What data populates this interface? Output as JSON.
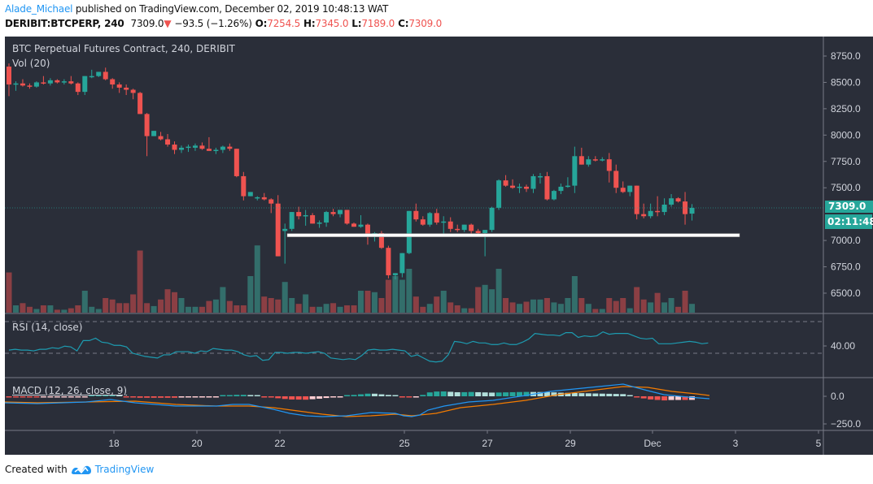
{
  "header": {
    "author": "Alade_Michael",
    "published_text": " published on TradingView.com, December 02, 2019 10:48:13 WAT",
    "symbol": "DERIBIT:BTCPERP, 240",
    "last": "7309.0",
    "change_arrow": "▼",
    "change": "−93.5 (−1.26%)",
    "o_label": "O:",
    "o": "7254.5",
    "h_label": "H:",
    "h": "7345.0",
    "l_label": "L:",
    "l": "7189.0",
    "c_label": "C:",
    "c": "7309.0"
  },
  "panes": {
    "main_title": "BTC Perpetual Futures Contract, 240, DERIBIT",
    "vol_title": "Vol (20)",
    "rsi_title": "RSI (14, close)",
    "macd_title": "MACD (12, 26, close, 9)",
    "price_label": "7309.0",
    "countdown": "02:11:48"
  },
  "footer": {
    "created_with": "Created with",
    "brand": "TradingView"
  },
  "colors": {
    "bg": "#2a2e39",
    "up": "#26a69a",
    "down": "#ef5350",
    "vol_up": "#336e6b",
    "vol_down": "#8b3f44",
    "rsi": "#1d9bb0",
    "macd": "#2196f3",
    "signal": "#f57c00",
    "hist_up_strong": "#26a69a",
    "hist_up_weak": "#b2dfdb",
    "hist_dn_strong": "#ef5350",
    "hist_dn_weak": "#ffcdd2",
    "support": "#ffffff"
  },
  "chart_data": [
    {
      "type": "candlestick",
      "title": "BTC Perpetual Futures Contract, 240, DERIBIT",
      "interval": "240",
      "y_ticks": [
        6500,
        6750,
        7000,
        7250,
        7500,
        7750,
        8000,
        8250,
        8500,
        8750
      ],
      "y_tick_labels": [
        "6500.0",
        "6750.0",
        "7000.0",
        "7500.0",
        "7750.0",
        "8000.0",
        "8250.0",
        "8500.0",
        "8750.0"
      ],
      "x_tick_labels": [
        "18",
        "20",
        "22",
        "25",
        "27",
        "29",
        "Dec",
        "3",
        "5"
      ],
      "last_price": 7309.0,
      "support_line": 7050,
      "ohlc": [
        [
          8650,
          8680,
          8370,
          8480
        ],
        [
          8480,
          8510,
          8420,
          8490
        ],
        [
          8490,
          8530,
          8460,
          8470
        ],
        [
          8470,
          8490,
          8440,
          8460
        ],
        [
          8460,
          8510,
          8450,
          8500
        ],
        [
          8500,
          8560,
          8480,
          8490
        ],
        [
          8490,
          8540,
          8470,
          8520
        ],
        [
          8520,
          8530,
          8490,
          8500
        ],
        [
          8500,
          8530,
          8480,
          8510
        ],
        [
          8510,
          8560,
          8480,
          8490
        ],
        [
          8490,
          8500,
          8380,
          8410
        ],
        [
          8410,
          8530,
          8380,
          8560
        ],
        [
          8560,
          8620,
          8540,
          8560
        ],
        [
          8560,
          8590,
          8550,
          8600
        ],
        [
          8600,
          8640,
          8520,
          8530
        ],
        [
          8530,
          8540,
          8440,
          8480
        ],
        [
          8480,
          8500,
          8400,
          8450
        ],
        [
          8450,
          8480,
          8380,
          8430
        ],
        [
          8430,
          8440,
          8340,
          8400
        ],
        [
          8400,
          8410,
          8200,
          8200
        ],
        [
          8200,
          8210,
          7800,
          7990
        ],
        [
          7990,
          8040,
          7990,
          8040
        ],
        [
          7990,
          8030,
          7950,
          7960
        ],
        [
          7960,
          8010,
          7890,
          7910
        ],
        [
          7910,
          7940,
          7820,
          7860
        ],
        [
          7860,
          7900,
          7830,
          7880
        ],
        [
          7880,
          7910,
          7840,
          7890
        ],
        [
          7880,
          7920,
          7850,
          7900
        ],
        [
          7900,
          7930,
          7860,
          7870
        ],
        [
          7870,
          7980,
          7850,
          7850
        ],
        [
          7850,
          7880,
          7820,
          7860
        ],
        [
          7860,
          7900,
          7830,
          7890
        ],
        [
          7890,
          7920,
          7850,
          7870
        ],
        [
          7870,
          7870,
          7600,
          7610
        ],
        [
          7610,
          7650,
          7380,
          7420
        ],
        [
          7420,
          7460,
          7440,
          7460
        ],
        [
          7400,
          7420,
          7380,
          7410
        ],
        [
          7410,
          7450,
          7380,
          7390
        ],
        [
          7390,
          7400,
          7260,
          7350
        ],
        [
          7350,
          7430,
          6950,
          6850
        ],
        [
          7090,
          7160,
          6780,
          7110
        ],
        [
          7110,
          7260,
          7090,
          7270
        ],
        [
          7270,
          7320,
          7200,
          7230
        ],
        [
          7230,
          7290,
          7140,
          7240
        ],
        [
          7240,
          7260,
          7160,
          7160
        ],
        [
          7160,
          7190,
          7120,
          7170
        ],
        [
          7170,
          7280,
          7130,
          7270
        ],
        [
          7270,
          7300,
          7230,
          7250
        ],
        [
          7250,
          7290,
          7220,
          7290
        ],
        [
          7290,
          7290,
          7150,
          7160
        ],
        [
          7160,
          7170,
          7140,
          7130
        ],
        [
          7130,
          7240,
          7120,
          7150
        ],
        [
          7150,
          7160,
          6960,
          7040
        ],
        [
          7040,
          7080,
          6990,
          7070
        ],
        [
          7070,
          7090,
          6920,
          6930
        ],
        [
          6930,
          6950,
          6640,
          6670
        ],
        [
          6670,
          6680,
          6630,
          6690
        ],
        [
          6690,
          6850,
          6650,
          6880
        ],
        [
          6880,
          7280,
          6870,
          7280
        ],
        [
          7280,
          7350,
          7180,
          7200
        ],
        [
          7200,
          7230,
          7140,
          7150
        ],
        [
          7150,
          7270,
          7130,
          7260
        ],
        [
          7260,
          7300,
          7150,
          7170
        ],
        [
          7170,
          7230,
          7050,
          7180
        ],
        [
          7180,
          7220,
          7080,
          7110
        ],
        [
          7110,
          7150,
          7080,
          7100
        ],
        [
          7100,
          7150,
          7080,
          7150
        ],
        [
          7150,
          7160,
          7040,
          7090
        ],
        [
          7090,
          7110,
          7050,
          7070
        ],
        [
          7070,
          6870,
          6850,
          7100
        ],
        [
          7100,
          7320,
          7080,
          7310
        ],
        [
          7310,
          7580,
          7290,
          7570
        ],
        [
          7570,
          7620,
          7510,
          7520
        ],
        [
          7520,
          7580,
          7490,
          7500
        ],
        [
          7500,
          7540,
          7450,
          7510
        ],
        [
          7510,
          7530,
          7460,
          7490
        ],
        [
          7490,
          7630,
          7450,
          7610
        ],
        [
          7610,
          7640,
          7540,
          7610
        ],
        [
          7610,
          7650,
          7380,
          7390
        ],
        [
          7390,
          7480,
          7380,
          7470
        ],
        [
          7470,
          7540,
          7440,
          7510
        ],
        [
          7510,
          7600,
          7500,
          7520
        ],
        [
          7520,
          7890,
          7450,
          7800
        ],
        [
          7800,
          7880,
          7720,
          7720
        ],
        [
          7720,
          7800,
          7700,
          7770
        ],
        [
          7770,
          7800,
          7750,
          7760
        ],
        [
          7760,
          7790,
          7750,
          7770
        ],
        [
          7770,
          7830,
          7550,
          7660
        ],
        [
          7660,
          7720,
          7450,
          7500
        ],
        [
          7500,
          7560,
          7450,
          7460
        ],
        [
          7460,
          7520,
          7420,
          7520
        ],
        [
          7520,
          7520,
          7200,
          7250
        ],
        [
          7250,
          7350,
          7210,
          7230
        ],
        [
          7230,
          7350,
          7210,
          7280
        ],
        [
          7280,
          7420,
          7230,
          7270
        ],
        [
          7270,
          7400,
          7240,
          7340
        ],
        [
          7340,
          7440,
          7320,
          7400
        ],
        [
          7400,
          7410,
          7360,
          7370
        ],
        [
          7370,
          7460,
          7150,
          7250
        ],
        [
          7254.5,
          7345,
          7189,
          7309
        ]
      ],
      "volume_rel": [
        0.55,
        0.1,
        0.13,
        0.08,
        0.05,
        0.1,
        0.1,
        0.04,
        0.04,
        0.06,
        0.1,
        0.3,
        0.08,
        0.05,
        0.2,
        0.18,
        0.13,
        0.13,
        0.25,
        0.85,
        0.13,
        0.09,
        0.18,
        0.32,
        0.28,
        0.2,
        0.08,
        0.08,
        0.08,
        0.16,
        0.18,
        0.35,
        0.16,
        0.1,
        0.1,
        0.5,
        0.92,
        0.22,
        0.2,
        0.18,
        0.42,
        0.2,
        0.12,
        0.25,
        0.08,
        0.08,
        0.12,
        0.13,
        0.08,
        0.1,
        0.1,
        0.3,
        0.3,
        0.28,
        0.2,
        0.45,
        0.5,
        0.45,
        0.6,
        0.22,
        0.08,
        0.12,
        0.22,
        0.3,
        0.14,
        0.1,
        0.06,
        0.06,
        0.35,
        0.38,
        0.32,
        0.6,
        0.2,
        0.14,
        0.12,
        0.15,
        0.18,
        0.18,
        0.2,
        0.14,
        0.12,
        0.2,
        0.5,
        0.2,
        0.12,
        0.05,
        0.05,
        0.2,
        0.16,
        0.2,
        0.06,
        0.35,
        0.18,
        0.14,
        0.27,
        0.14,
        0.2,
        0.08,
        0.3,
        0.12
      ]
    },
    {
      "type": "line",
      "title": "RSI (14, close)",
      "y_tick_labels": [
        "40.00"
      ],
      "bands": [
        70,
        30
      ],
      "values": [
        34,
        35,
        34,
        34,
        33,
        35,
        35,
        37,
        36,
        39,
        38,
        33,
        46,
        46,
        49,
        44,
        43,
        40,
        40,
        38,
        30,
        28,
        26,
        25,
        24,
        28,
        28,
        32,
        32,
        32,
        30,
        33,
        32,
        36,
        35,
        34,
        34,
        32,
        28,
        26,
        27,
        21,
        22,
        31,
        31,
        30,
        31,
        31,
        30,
        31,
        32,
        30,
        24,
        23,
        22,
        23,
        22,
        27,
        34,
        35,
        34,
        34,
        35,
        34,
        33,
        26,
        28,
        24,
        20,
        19,
        20,
        28,
        45,
        44,
        42,
        45,
        43,
        43,
        41,
        41,
        43,
        41,
        41,
        44,
        48,
        55,
        54,
        53,
        53,
        52,
        56,
        56,
        50,
        52,
        51,
        52,
        57,
        54,
        55,
        55,
        55,
        52,
        49,
        48,
        49,
        42,
        42,
        42,
        43,
        44,
        45,
        44,
        42,
        43
      ]
    },
    {
      "type": "bar+line",
      "title": "MACD (12, 26, close, 9)",
      "y_tick_labels": [
        "0.0",
        "−250.0"
      ],
      "note": "Histogram with MACD (blue) and signal (orange) lines"
    }
  ]
}
